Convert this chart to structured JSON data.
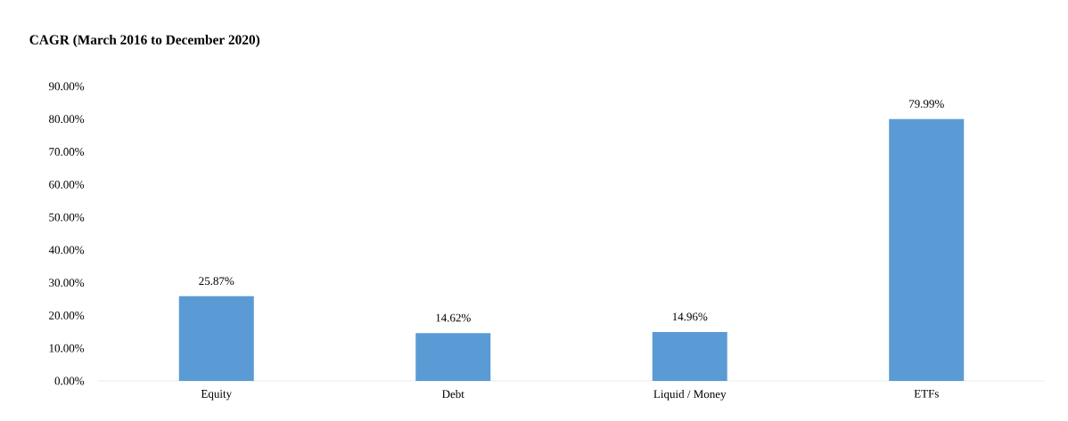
{
  "chart_data": {
    "type": "bar",
    "title": "CAGR (March 2016 to December 2020)",
    "categories": [
      "Equity",
      "Debt",
      "Liquid / Money",
      "ETFs"
    ],
    "values": [
      25.87,
      14.62,
      14.96,
      79.99
    ],
    "value_labels": [
      "25.87%",
      "14.62%",
      "14.96%",
      "79.99%"
    ],
    "color": "#5b9bd5",
    "ylim": [
      0,
      90
    ],
    "yticks": [
      {
        "value": 0,
        "label": "0.00%"
      },
      {
        "value": 10,
        "label": "10.00%"
      },
      {
        "value": 20,
        "label": "20.00%"
      },
      {
        "value": 30,
        "label": "30.00%"
      },
      {
        "value": 40,
        "label": "40.00%"
      },
      {
        "value": 50,
        "label": "50.00%"
      },
      {
        "value": 60,
        "label": "60.00%"
      },
      {
        "value": 70,
        "label": "70.00%"
      },
      {
        "value": 80,
        "label": "80.00%"
      },
      {
        "value": 90,
        "label": "90.00%"
      }
    ]
  }
}
